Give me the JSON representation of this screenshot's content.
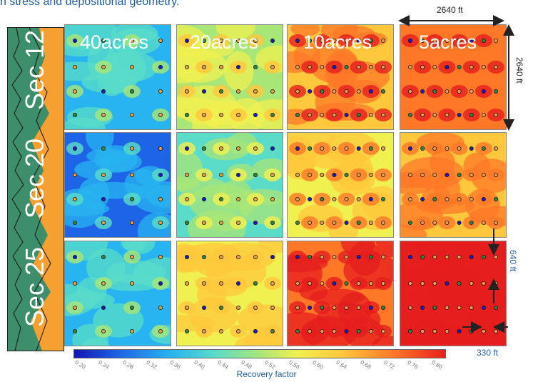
{
  "caption": "n stress and depositional geometry.",
  "sections": [
    "Sec 12",
    "Sec 20",
    "Sec 25"
  ],
  "spacings": [
    "40acres",
    "20acres",
    "10acres",
    "5acres"
  ],
  "dimensions": {
    "width": "2640 ft",
    "height": "2640 ft",
    "row_spacing": "640 ft",
    "well_spacing": "330 ft"
  },
  "colorbar": {
    "title": "Recovery factor",
    "ticks": [
      "0.20",
      "0.24",
      "0.28",
      "0.32",
      "0.36",
      "0.40",
      "0.44",
      "0.48",
      "0.52",
      "0.56",
      "0.60",
      "0.64",
      "0.68",
      "0.72",
      "0.76",
      "0.80"
    ],
    "colors": [
      "#1414b4",
      "#1e64e6",
      "#28b4f0",
      "#5adcc8",
      "#a8e678",
      "#f0f050",
      "#ffc83c",
      "#ff7828",
      "#e61e1e"
    ]
  }
}
